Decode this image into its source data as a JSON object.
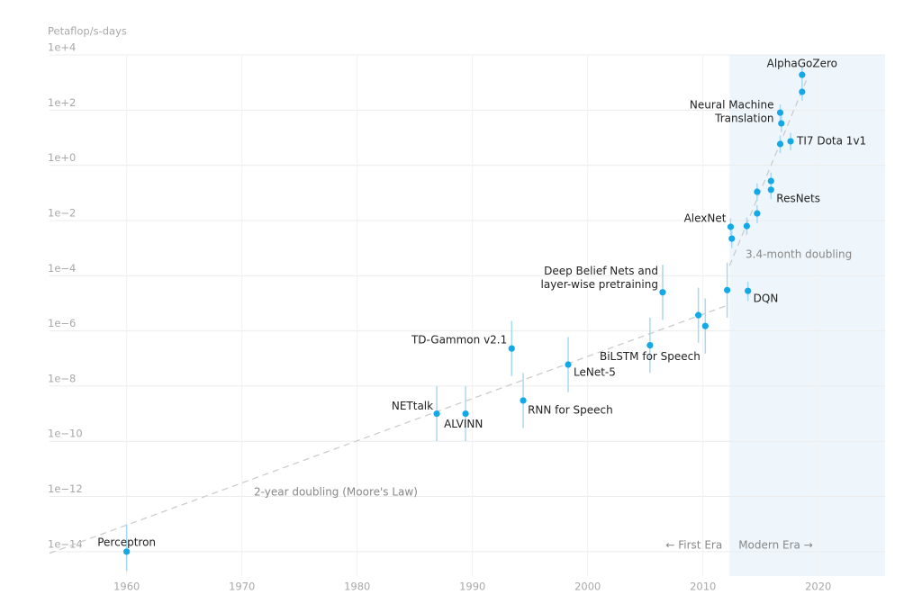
{
  "chart_data": {
    "type": "scatter",
    "y_label": "Petaflop/s-days",
    "log_y": true,
    "grid": true,
    "point_color": "#13a8e6",
    "error_color": "#a6daf2",
    "trend_color": "#cccccc",
    "shade_color": "#eef6fb",
    "xlim": [
      1953.3,
      2025.8
    ],
    "ylim": [
      1.3e-15,
      10000
    ],
    "xticks": [
      1960,
      1970,
      1980,
      1990,
      2000,
      2010,
      2020
    ],
    "yticks": [
      {
        "value": 1e-14,
        "label": "1e−14"
      },
      {
        "value": 1e-12,
        "label": "1e−12"
      },
      {
        "value": 1e-10,
        "label": "1e−10"
      },
      {
        "value": 1e-08,
        "label": "1e−8"
      },
      {
        "value": 1e-06,
        "label": "1e−6"
      },
      {
        "value": 0.0001,
        "label": "1e−4"
      },
      {
        "value": 0.01,
        "label": "1e−2"
      },
      {
        "value": 1,
        "label": "1e+0"
      },
      {
        "value": 100,
        "label": "1e+2"
      },
      {
        "value": 10000,
        "label": "1e+4"
      }
    ],
    "x": [
      1959.99,
      1986.9,
      1989.4,
      1993.4,
      1994.4,
      1998.3,
      2005.4,
      2006.5,
      2009.6,
      2010.2,
      2012.1,
      2013.9,
      2012.4,
      2012.5,
      2013.8,
      2014.7,
      2014.7,
      2015.9,
      2015.9,
      2016.7,
      2017.6,
      2016.7,
      2016.8,
      2018.6,
      2018.6
    ],
    "values": [
      1e-14,
      1e-09,
      1e-09,
      2.3e-07,
      3e-09,
      6e-08,
      3e-07,
      2.5e-05,
      3.7e-06,
      1.5e-06,
      3e-05,
      2.8e-05,
      0.0059,
      0.0022,
      0.0063,
      0.018,
      0.11,
      0.13,
      0.27,
      5.9,
      7.4,
      81,
      33,
      460,
      1900
    ],
    "low": [
      2e-15,
      1e-10,
      1e-10,
      2.3e-08,
      3e-10,
      6e-09,
      3e-08,
      2.5e-06,
      3.7e-07,
      1.5e-07,
      3e-06,
      1.2e-05,
      0.003,
      0.001,
      0.003,
      0.008,
      0.05,
      0.06,
      0.13,
      2.8,
      3.5,
      40,
      16,
      220,
      900
    ],
    "high": [
      1e-13,
      1e-08,
      1e-08,
      2.3e-06,
      3e-08,
      6e-07,
      3e-06,
      0.00025,
      3.7e-05,
      1.5e-05,
      0.0003,
      6e-05,
      0.012,
      0.0045,
      0.013,
      0.036,
      0.22,
      0.26,
      0.55,
      12,
      15,
      160,
      66,
      900,
      3800
    ],
    "labels": [
      [
        "Perceptron"
      ],
      [
        "NETtalk"
      ],
      [
        "ALVINN"
      ],
      [
        "TD-Gammon v2.1"
      ],
      [
        "RNN for Speech"
      ],
      [
        "LeNet-5"
      ],
      [
        "BiLSTM for Speech"
      ],
      [
        "Deep Belief Nets and",
        "layer-wise pretraining"
      ],
      null,
      null,
      null,
      [
        "DQN"
      ],
      [
        "AlexNet"
      ],
      null,
      null,
      null,
      null,
      [
        "ResNets"
      ],
      null,
      null,
      [
        "TI7 Dota 1v1"
      ],
      [
        "Neural Machine",
        "Translation"
      ],
      null,
      null,
      [
        "AlphaGoZero"
      ]
    ],
    "trends": [
      {
        "name": "2-year doubling (Moore's Law)",
        "x": [
          1953.3,
          2012.3
        ],
        "values": [
          8.7e-15,
          9e-06
        ]
      },
      {
        "name": "3.4-month doubling",
        "x": [
          2012.3,
          2019.1
        ],
        "values": [
          0.00023,
          1660
        ]
      }
    ],
    "modern_era_start": 2012.3,
    "era_labels": [
      "← First Era",
      "Modern Era →"
    ]
  }
}
